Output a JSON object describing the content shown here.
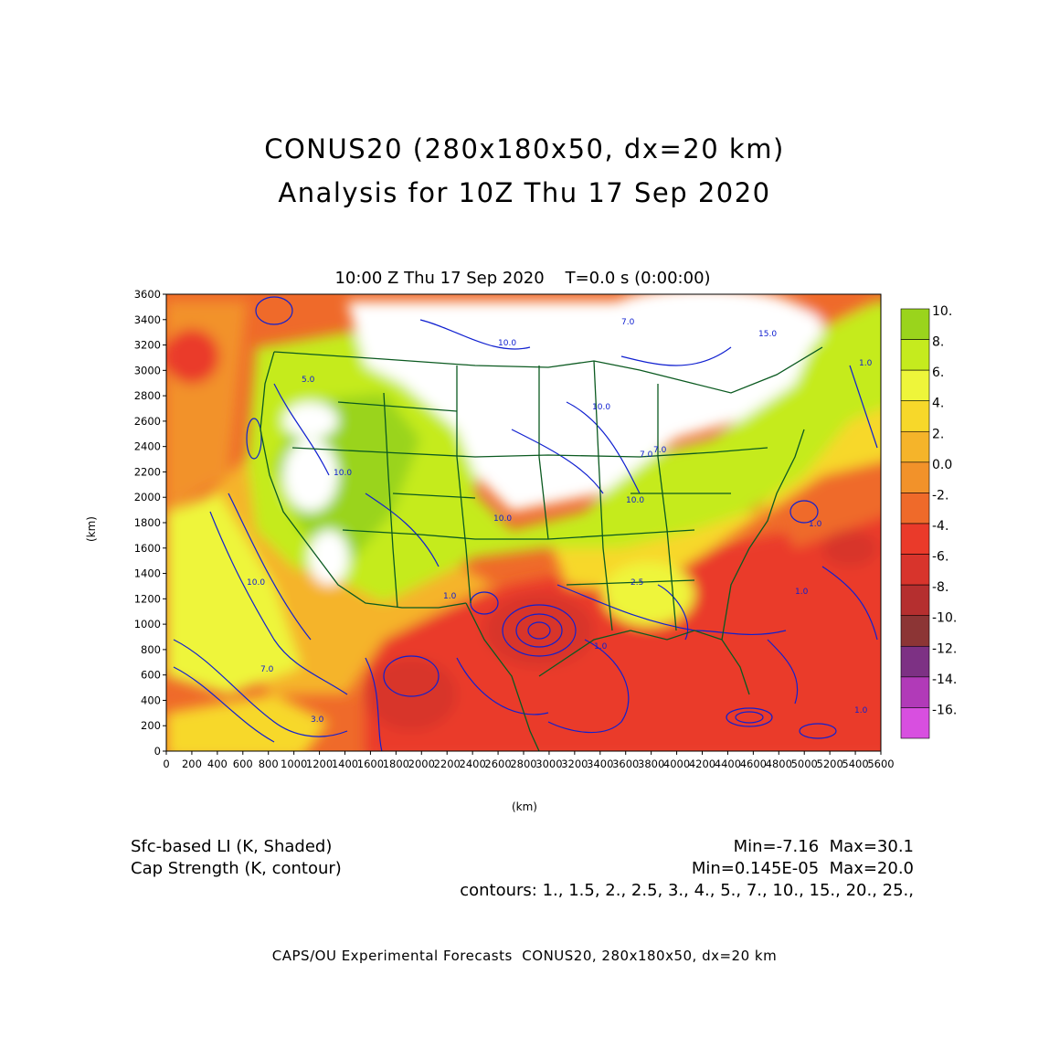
{
  "title": {
    "line1": "CONUS20 (280x180x50, dx=20 km)",
    "line2": "Analysis for 10Z Thu 17 Sep 2020"
  },
  "plot": {
    "subtitle": "10:00 Z Thu 17 Sep 2020    T=0.0 s (0:00:00)",
    "xlabel": "(km)",
    "ylabel": "(km)",
    "x_ticks": [
      "0",
      "200",
      "400",
      "600",
      "800",
      "1000",
      "1200",
      "1400",
      "1600",
      "1800",
      "2000",
      "2200",
      "2400",
      "2600",
      "2800",
      "3000",
      "3200",
      "3400",
      "3600",
      "3800",
      "4000",
      "4200",
      "4400",
      "4600",
      "4800",
      "5000",
      "5200",
      "5400",
      "5600"
    ],
    "y_ticks": [
      "0",
      "200",
      "400",
      "600",
      "800",
      "1000",
      "1200",
      "1400",
      "1600",
      "1800",
      "2000",
      "2200",
      "2400",
      "2600",
      "2800",
      "3000",
      "3200",
      "3400",
      "3600"
    ],
    "x_range_km": [
      0,
      5600
    ],
    "y_range_km": [
      0,
      3600
    ],
    "contour_labels": [
      "7.0",
      "10.0",
      "15.0",
      "10.0",
      "5.0",
      "10.0",
      "7.0",
      "10.0",
      "1.0",
      "10.0",
      "7.0",
      "3.0",
      "1.0",
      "1.0",
      "2.5",
      "1.0",
      "1.0",
      "1.0",
      "7.0",
      "10.0"
    ]
  },
  "colorbar": {
    "labels": [
      "10.",
      "8.",
      "6.",
      "4.",
      "2.",
      "0.0",
      "-2.",
      "-4.",
      "-6.",
      "-8.",
      "-10.",
      "-12.",
      "-14.",
      "-16."
    ],
    "colors": [
      "#9ad41c",
      "#c5eb1e",
      "#eef53a",
      "#f7d82a",
      "#f5b42a",
      "#f2922a",
      "#ef6a2a",
      "#ea3a2a",
      "#d8342c",
      "#b52f2f",
      "#8c3535",
      "#7d3184",
      "#b13ab8",
      "#d84fe0"
    ]
  },
  "fields": {
    "shaded": {
      "label": "Sfc-based LI (K, Shaded)",
      "minmax": "Min=-7.16  Max=30.1"
    },
    "contour": {
      "label": "Cap Strength (K, contour)",
      "minmax": "Min=0.145E-05  Max=20.0"
    },
    "contours_text": "contours: 1., 1.5, 2., 2.5, 3., 4., 5., 7., 10., 15., 20., 25.,"
  },
  "footer": "CAPS/OU Experimental Forecasts  CONUS20, 280x180x50, dx=20 km"
}
